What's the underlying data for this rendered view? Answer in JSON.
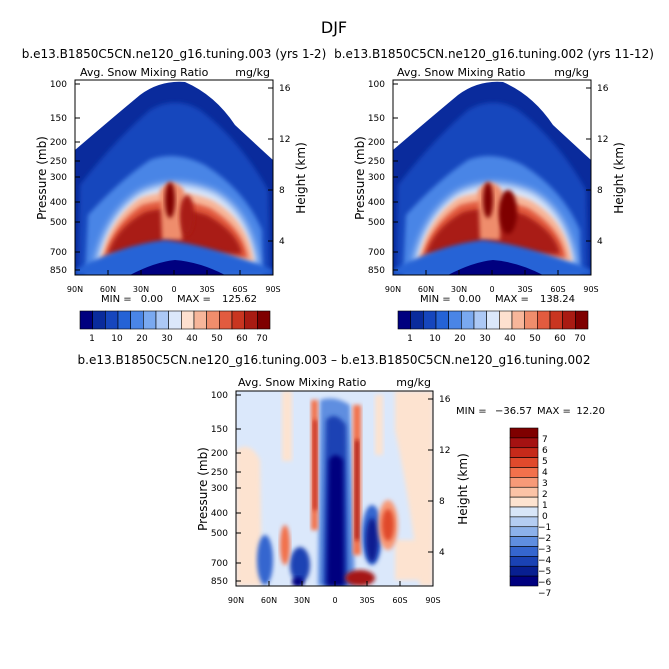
{
  "page_title": "DJF",
  "chart_data": [
    {
      "type": "heatmap",
      "title": "b.e13.B1850C5CN.ne120_g16.tuning.003 (yrs 1-2)",
      "subtitle_left": "Avg. Snow Mixing Ratio",
      "subtitle_right": "mg/kg",
      "ylabel": "Pressure (mb)",
      "ylabel_right": "Height (km)",
      "x_ticks": [
        "90N",
        "60N",
        "30N",
        "0",
        "30S",
        "60S",
        "90S"
      ],
      "y_ticks": [
        "100",
        "150",
        "200",
        "250",
        "300",
        "400",
        "500",
        "700",
        "850"
      ],
      "height_ticks": [
        "16",
        "12",
        "8",
        "4"
      ],
      "stats": {
        "min_label": "MIN =",
        "min": "0.00",
        "max_label": "MAX =",
        "max": "125.62"
      },
      "colorbar_labels": [
        "1",
        "10",
        "20",
        "30",
        "40",
        "50",
        "60",
        "70"
      ]
    },
    {
      "type": "heatmap",
      "title": "b.e13.B1850C5CN.ne120_g16.tuning.002 (yrs 11-12)",
      "subtitle_left": "Avg. Snow Mixing Ratio",
      "subtitle_right": "mg/kg",
      "ylabel": "Pressure (mb)",
      "ylabel_right": "Height (km)",
      "x_ticks": [
        "90N",
        "60N",
        "30N",
        "0",
        "30S",
        "60S",
        "90S"
      ],
      "y_ticks": [
        "100",
        "150",
        "200",
        "250",
        "300",
        "400",
        "500",
        "700",
        "850"
      ],
      "height_ticks": [
        "16",
        "12",
        "8",
        "4"
      ],
      "stats": {
        "min_label": "MIN =",
        "min": "0.00",
        "max_label": "MAX =",
        "max": "138.24"
      },
      "colorbar_labels": [
        "1",
        "10",
        "20",
        "30",
        "40",
        "50",
        "60",
        "70"
      ]
    },
    {
      "type": "heatmap",
      "title": "b.e13.B1850C5CN.ne120_g16.tuning.003 – b.e13.B1850C5CN.ne120_g16.tuning.002",
      "subtitle_left": "Avg. Snow Mixing Ratio",
      "subtitle_right": "mg/kg",
      "ylabel": "Pressure (mb)",
      "ylabel_right": "Height (km)",
      "x_ticks": [
        "90N",
        "60N",
        "30N",
        "0",
        "30S",
        "60S",
        "90S"
      ],
      "y_ticks": [
        "100",
        "150",
        "200",
        "250",
        "300",
        "400",
        "500",
        "700",
        "850"
      ],
      "height_ticks": [
        "16",
        "12",
        "8",
        "4"
      ],
      "stats": {
        "min_label": "MIN =",
        "min": "−36.57",
        "max_label": "MAX =",
        "max": "12.20"
      },
      "colorbar_labels": [
        "7",
        "6",
        "5",
        "4",
        "3",
        "2",
        "1",
        "0",
        "−1",
        "−2",
        "−3",
        "−4",
        "−5",
        "−6",
        "−7"
      ]
    }
  ],
  "colors": {
    "abs_scale": [
      "#00007f",
      "#0a2b9c",
      "#1646bd",
      "#2563d6",
      "#4a85e6",
      "#7aa9f0",
      "#acc9f6",
      "#dbe8fb",
      "#fde0cf",
      "#f7b69a",
      "#ef8d6c",
      "#e25b3f",
      "#c93520",
      "#a91b12",
      "#7f0000"
    ],
    "diff_scale": [
      "#7f0000",
      "#a51212",
      "#c62a1a",
      "#e04a2c",
      "#f2714c",
      "#f79a78",
      "#fbc3a6",
      "#fde3d0",
      "#d8e6f8",
      "#b4cdf2",
      "#8cb1ea",
      "#5f8ee0",
      "#3566cf",
      "#1a42b4",
      "#081f91",
      "#00007f"
    ]
  }
}
